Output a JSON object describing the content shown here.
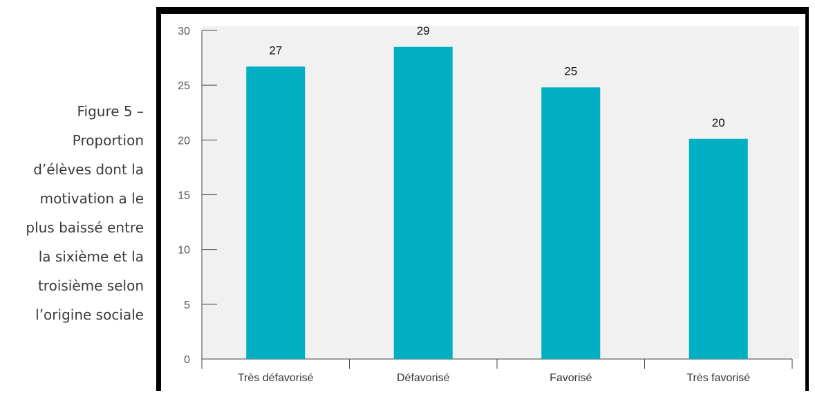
{
  "caption": {
    "lines": [
      "Figure 5 –",
      "Proportion",
      "d’élèves dont la",
      "motivation a le",
      "plus baissé entre",
      "la sixième et la",
      "troisième selon",
      "l’origine sociale"
    ]
  },
  "chart_data": {
    "type": "bar",
    "categories": [
      "Très défavorisé",
      "Défavorisé",
      "Favorisé",
      "Très favorisé"
    ],
    "values": [
      27,
      29,
      25,
      20
    ],
    "plotted_values": [
      26.7,
      28.5,
      24.8,
      20.1
    ],
    "data_labels": [
      "27",
      "29",
      "25",
      "20"
    ],
    "yticks": [
      0,
      5,
      10,
      15,
      20,
      25,
      30
    ],
    "ylim": [
      0,
      30
    ],
    "bar_color": "#00afc1",
    "plot_background": "#f1f1f1",
    "grid": false,
    "legend": "none"
  }
}
